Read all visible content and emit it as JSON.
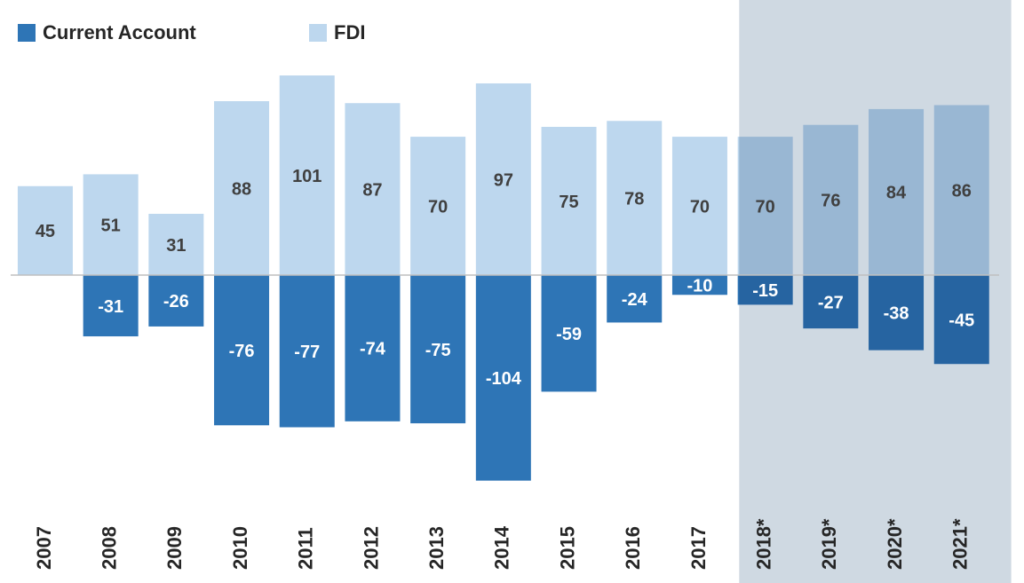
{
  "chart_data": {
    "type": "bar",
    "categories": [
      "2007",
      "2008",
      "2009",
      "2010",
      "2011",
      "2012",
      "2013",
      "2014",
      "2015",
      "2016",
      "2017",
      "2018*",
      "2019*",
      "2020*",
      "2021*"
    ],
    "series": [
      {
        "name": "Current Account",
        "color": "#2e75b6",
        "label_color": "#ffffff",
        "values": [
          0,
          -31,
          -26,
          -76,
          -77,
          -74,
          -75,
          -104,
          -59,
          -24,
          -10,
          -15,
          -27,
          -38,
          -45
        ]
      },
      {
        "name": "FDI",
        "color": "#bdd7ee",
        "label_color": "#404040",
        "values": [
          45,
          51,
          31,
          88,
          101,
          87,
          70,
          97,
          75,
          78,
          70,
          70,
          76,
          84,
          86
        ]
      }
    ],
    "ylim": [
      -110,
      110
    ],
    "shade": {
      "from": 11,
      "to": 14,
      "color": "#cfd9e2"
    },
    "legend": "top-left"
  }
}
